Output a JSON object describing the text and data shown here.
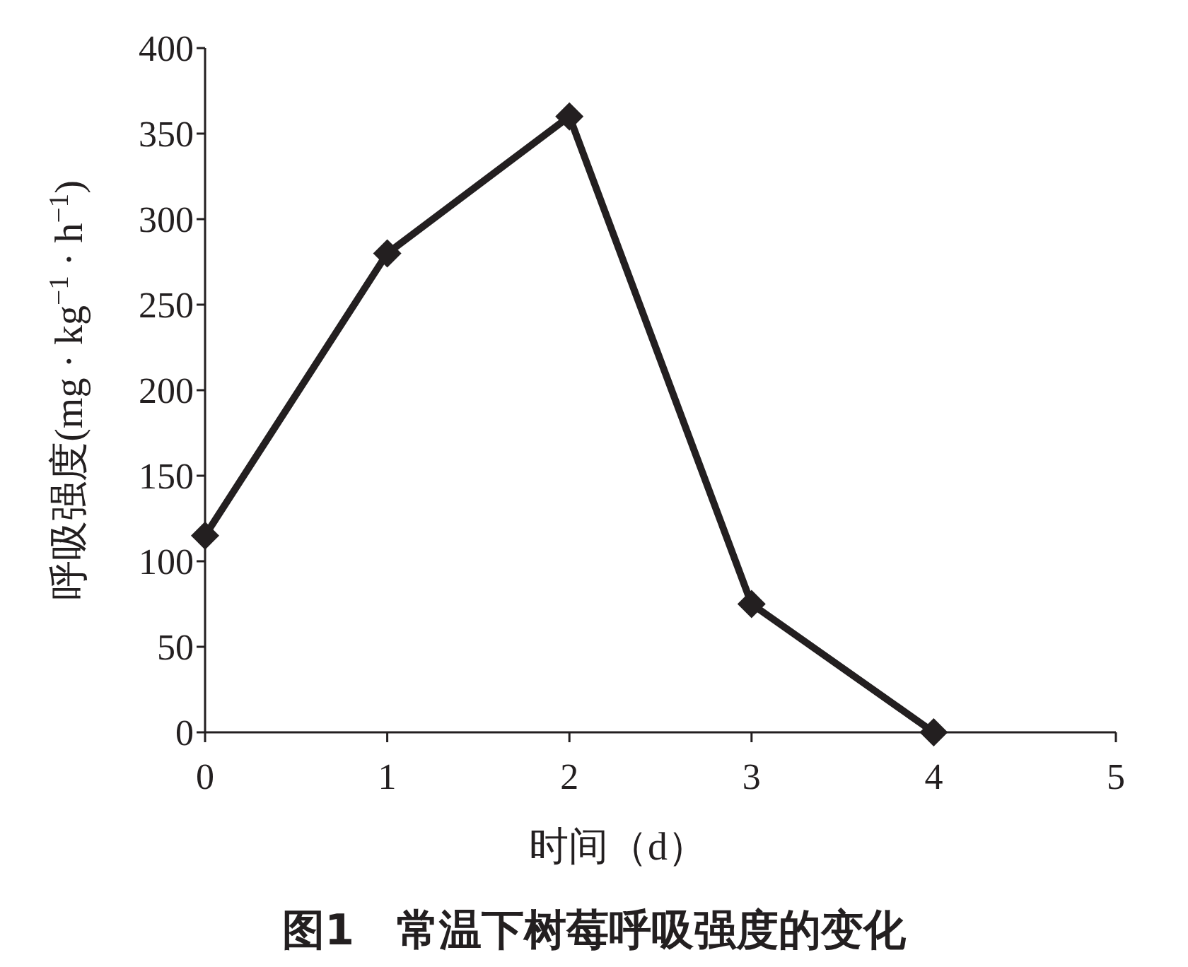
{
  "chart_data": {
    "type": "line",
    "title": "图1　常温下树莓呼吸强度的变化",
    "xlabel": "时间（d）",
    "ylabel": "呼吸强度(mg · kg$^{−1}$ · h$^{−1}$)",
    "x": [
      0,
      1,
      2,
      3,
      4
    ],
    "series": [
      {
        "color": "#231f20",
        "values": [
          115,
          280,
          360,
          75,
          0
        ]
      }
    ],
    "xlim": [
      0,
      5
    ],
    "xticks": [
      0,
      1,
      2,
      3,
      4,
      5
    ],
    "ylim": [
      0,
      400
    ],
    "yticks": [
      0,
      50,
      100,
      150,
      200,
      250,
      300,
      350,
      400
    ],
    "marker": "diamond",
    "line_style": "solid"
  }
}
